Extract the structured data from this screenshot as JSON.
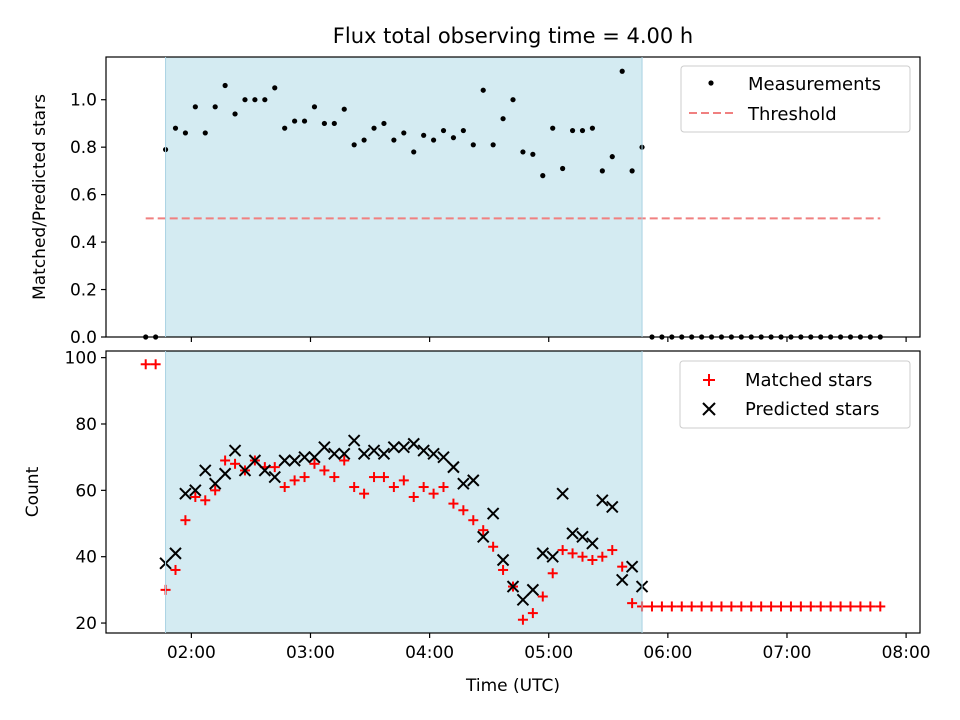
{
  "chart_data": [
    {
      "type": "scatter",
      "title": "Flux total observing time = 4.00 h",
      "ylabel": "Matched/Predicted stars",
      "ylim": [
        0,
        1.18
      ],
      "yticks": [
        0.0,
        0.2,
        0.4,
        0.6,
        0.8,
        1.0
      ],
      "ytick_labels": [
        "0.0",
        "0.2",
        "0.4",
        "0.6",
        "0.8",
        "1.0"
      ],
      "shaded_interval": [
        "01:47",
        "05:47"
      ],
      "shade_color": "#d4ebf2",
      "legend_position": "upper right",
      "series": [
        {
          "name": "Measurements",
          "marker": "dot",
          "color": "#000000",
          "x": [
            "01:37",
            "01:42",
            "01:47",
            "01:52",
            "01:57",
            "02:02",
            "02:07",
            "02:12",
            "02:17",
            "02:22",
            "02:27",
            "02:32",
            "02:37",
            "02:42",
            "02:47",
            "02:52",
            "02:57",
            "03:02",
            "03:07",
            "03:12",
            "03:17",
            "03:22",
            "03:27",
            "03:32",
            "03:37",
            "03:42",
            "03:47",
            "03:52",
            "03:57",
            "04:02",
            "04:07",
            "04:12",
            "04:17",
            "04:22",
            "04:27",
            "04:32",
            "04:37",
            "04:42",
            "04:47",
            "04:52",
            "04:57",
            "05:02",
            "05:07",
            "05:12",
            "05:17",
            "05:22",
            "05:27",
            "05:32",
            "05:37",
            "05:42",
            "05:47",
            "05:52",
            "05:57",
            "06:02",
            "06:07",
            "06:12",
            "06:17",
            "06:22",
            "06:27",
            "06:32",
            "06:37",
            "06:42",
            "06:47",
            "06:52",
            "06:57",
            "07:02",
            "07:07",
            "07:12",
            "07:17",
            "07:22",
            "07:27",
            "07:32",
            "07:37",
            "07:42",
            "07:47"
          ],
          "y": [
            0.0,
            0.0,
            0.79,
            0.88,
            0.86,
            0.97,
            0.86,
            0.97,
            1.06,
            0.94,
            1.0,
            1.0,
            1.0,
            1.05,
            0.88,
            0.91,
            0.91,
            0.97,
            0.9,
            0.9,
            0.96,
            0.81,
            0.83,
            0.88,
            0.9,
            0.83,
            0.86,
            0.78,
            0.85,
            0.83,
            0.87,
            0.84,
            0.87,
            0.81,
            1.04,
            0.81,
            0.92,
            1.0,
            0.78,
            0.77,
            0.68,
            0.88,
            0.71,
            0.87,
            0.87,
            0.88,
            0.7,
            0.76,
            1.12,
            0.7,
            0.8,
            0.0,
            0.0,
            0.0,
            0.0,
            0.0,
            0.0,
            0.0,
            0.0,
            0.0,
            0.0,
            0.0,
            0.0,
            0.0,
            0.0,
            0.0,
            0.0,
            0.0,
            0.0,
            0.0,
            0.0,
            0.0,
            0.0,
            0.0,
            0.0
          ]
        },
        {
          "name": "Threshold",
          "style": "dashed",
          "color": "#f08080",
          "x": [
            "01:37",
            "07:47"
          ],
          "y": [
            0.5,
            0.5
          ]
        }
      ]
    },
    {
      "type": "scatter",
      "xlabel": "Time (UTC)",
      "ylabel": "Count",
      "ylim": [
        17,
        102
      ],
      "yticks": [
        20,
        40,
        60,
        80,
        100
      ],
      "ytick_labels": [
        "20",
        "40",
        "60",
        "80",
        "100"
      ],
      "xlim": [
        "01:17",
        "08:07"
      ],
      "xticks": [
        "02:00",
        "03:00",
        "04:00",
        "05:00",
        "06:00",
        "07:00",
        "08:00"
      ],
      "xtick_labels": [
        "02:00",
        "03:00",
        "04:00",
        "05:00",
        "06:00",
        "07:00",
        "08:00"
      ],
      "shaded_interval": [
        "01:47",
        "05:47"
      ],
      "shade_color": "#d4ebf2",
      "legend_position": "upper right",
      "series": [
        {
          "name": "Matched stars",
          "marker": "plus",
          "color": "#ff0000",
          "x": [
            "01:37",
            "01:42",
            "01:47",
            "01:52",
            "01:57",
            "02:02",
            "02:07",
            "02:12",
            "02:17",
            "02:22",
            "02:27",
            "02:32",
            "02:37",
            "02:42",
            "02:47",
            "02:52",
            "02:57",
            "03:02",
            "03:07",
            "03:12",
            "03:17",
            "03:22",
            "03:27",
            "03:32",
            "03:37",
            "03:42",
            "03:47",
            "03:52",
            "03:57",
            "04:02",
            "04:07",
            "04:12",
            "04:17",
            "04:22",
            "04:27",
            "04:32",
            "04:37",
            "04:42",
            "04:47",
            "04:52",
            "04:57",
            "05:02",
            "05:07",
            "05:12",
            "05:17",
            "05:22",
            "05:27",
            "05:32",
            "05:37",
            "05:42",
            "05:47",
            "05:52",
            "05:57",
            "06:02",
            "06:07",
            "06:12",
            "06:17",
            "06:22",
            "06:27",
            "06:32",
            "06:37",
            "06:42",
            "06:47",
            "06:52",
            "06:57",
            "07:02",
            "07:07",
            "07:12",
            "07:17",
            "07:22",
            "07:27",
            "07:32",
            "07:37",
            "07:42",
            "07:47"
          ],
          "y": [
            98,
            98,
            30,
            36,
            51,
            58,
            57,
            60,
            69,
            68,
            66,
            69,
            67,
            67,
            61,
            63,
            64,
            68,
            66,
            64,
            69,
            61,
            59,
            64,
            64,
            61,
            63,
            58,
            61,
            59,
            61,
            56,
            54,
            51,
            48,
            43,
            36,
            31,
            21,
            23,
            28,
            35,
            42,
            41,
            40,
            39,
            40,
            42,
            37,
            26,
            25,
            25,
            25,
            25,
            25,
            25,
            25,
            25,
            25,
            25,
            25,
            25,
            25,
            25,
            25,
            25,
            25,
            25,
            25,
            25,
            25,
            25,
            25,
            25,
            25
          ]
        },
        {
          "name": "Predicted stars",
          "marker": "x",
          "color": "#000000",
          "x": [
            "01:47",
            "01:52",
            "01:57",
            "02:02",
            "02:07",
            "02:12",
            "02:17",
            "02:22",
            "02:27",
            "02:32",
            "02:37",
            "02:42",
            "02:47",
            "02:52",
            "02:57",
            "03:02",
            "03:07",
            "03:12",
            "03:17",
            "03:22",
            "03:27",
            "03:32",
            "03:37",
            "03:42",
            "03:47",
            "03:52",
            "03:57",
            "04:02",
            "04:07",
            "04:12",
            "04:17",
            "04:22",
            "04:27",
            "04:32",
            "04:37",
            "04:42",
            "04:47",
            "04:52",
            "04:57",
            "05:02",
            "05:07",
            "05:12",
            "05:17",
            "05:22",
            "05:27",
            "05:32",
            "05:37",
            "05:42",
            "05:47"
          ],
          "y": [
            38,
            41,
            59,
            60,
            66,
            62,
            65,
            72,
            66,
            69,
            66,
            64,
            69,
            69,
            70,
            70,
            73,
            71,
            71,
            75,
            71,
            72,
            71,
            73,
            73,
            74,
            72,
            71,
            70,
            67,
            62,
            63,
            46,
            53,
            39,
            31,
            27,
            30,
            41,
            40,
            59,
            47,
            46,
            44,
            57,
            55,
            33,
            37,
            31
          ]
        }
      ]
    }
  ]
}
